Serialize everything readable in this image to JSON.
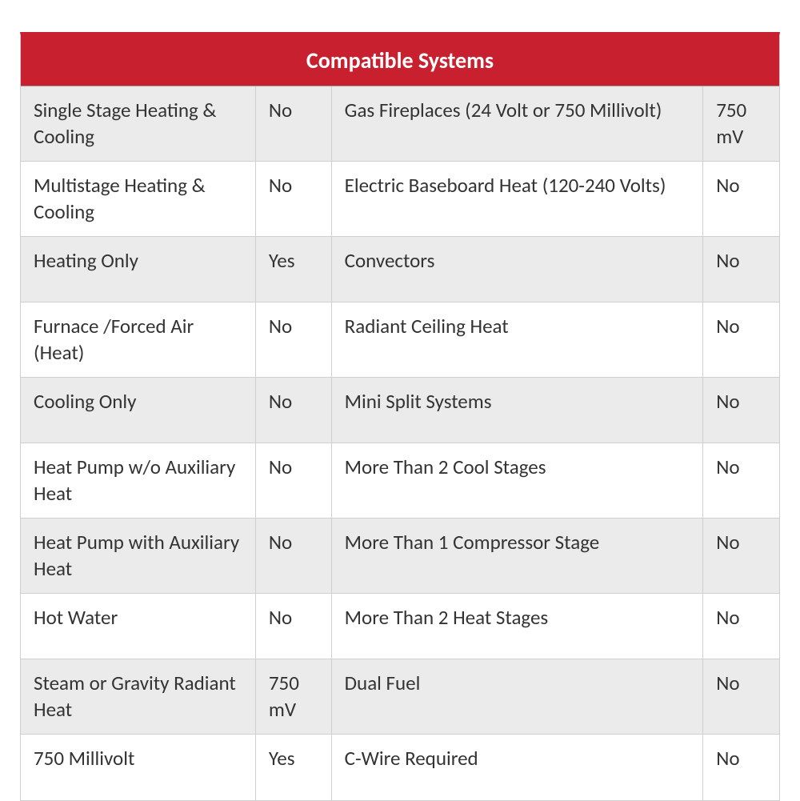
{
  "table": {
    "title": "Compatible Systems",
    "header_bg": "#c8202e",
    "header_fg": "#ffffff",
    "odd_row_bg": "#ebebeb",
    "even_row_bg": "#ffffff",
    "border_color": "#d0d0d0",
    "font_family": "Calibri",
    "title_fontsize": 28,
    "cell_fontsize": 25,
    "columns": [
      {
        "type": "label",
        "width_pct": 31
      },
      {
        "type": "value",
        "width_pct": 10
      },
      {
        "type": "label",
        "width_pct": 49
      },
      {
        "type": "value",
        "width_pct": 10
      }
    ],
    "rows": [
      {
        "left_label": "Single Stage Heating & Cooling",
        "left_value": "No",
        "right_label": "Gas Fireplaces (24 Volt or 750 Millivolt)",
        "right_value": "750 mV"
      },
      {
        "left_label": "Multistage Heating & Cooling",
        "left_value": "No",
        "right_label": "Electric Baseboard Heat (120-240 Volts)",
        "right_value": "No"
      },
      {
        "left_label": "Heating Only",
        "left_value": "Yes",
        "right_label": "Convectors",
        "right_value": "No"
      },
      {
        "left_label": "Furnace /Forced Air (Heat)",
        "left_value": "No",
        "right_label": "Radiant Ceiling Heat",
        "right_value": "No"
      },
      {
        "left_label": "Cooling Only",
        "left_value": "No",
        "right_label": "Mini Split Systems",
        "right_value": "No"
      },
      {
        "left_label": "Heat Pump w/o Auxiliary Heat",
        "left_value": "No",
        "right_label": "More Than 2 Cool Stages",
        "right_value": "No"
      },
      {
        "left_label": "Heat Pump with Auxiliary Heat",
        "left_value": "No",
        "right_label": "More Than 1 Compressor Stage",
        "right_value": "No"
      },
      {
        "left_label": "Hot Water",
        "left_value": "No",
        "right_label": "More Than 2 Heat Stages",
        "right_value": "No"
      },
      {
        "left_label": "Steam or Gravity Radiant Heat",
        "left_value": "750 mV",
        "right_label": "Dual Fuel",
        "right_value": "No"
      },
      {
        "left_label": "750 Millivolt",
        "left_value": "Yes",
        "right_label": "C-Wire Required",
        "right_value": "No"
      }
    ]
  }
}
